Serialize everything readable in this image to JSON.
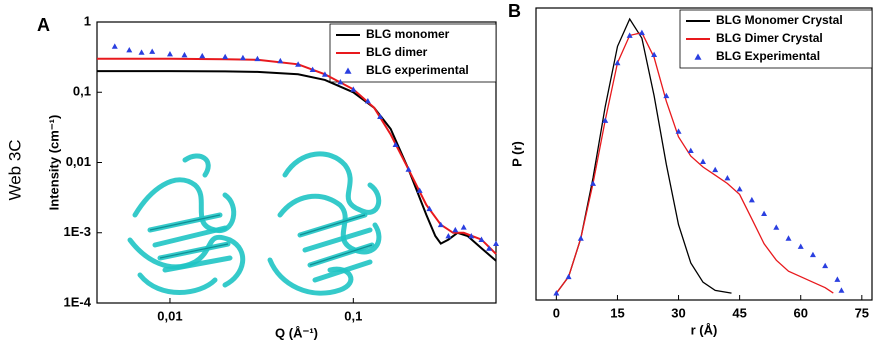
{
  "side_label": "Web 3C",
  "chart_data": [
    {
      "type": "line",
      "panel": "A",
      "xlabel": "Q (Å⁻¹)",
      "ylabel": "Intensity (cm⁻¹)",
      "xlog": true,
      "ylog": true,
      "legend": "top-right",
      "xlim": [
        0.004,
        0.6
      ],
      "ylim": [
        0.0001,
        1
      ],
      "xticks": [
        {
          "value": 0.01,
          "label": "0,01"
        },
        {
          "value": 0.1,
          "label": "0,1"
        }
      ],
      "yticks": [
        {
          "value": 0.0001,
          "label": "1E-4"
        },
        {
          "value": 0.001,
          "label": "1E-3"
        },
        {
          "value": 0.01,
          "label": "0,01"
        },
        {
          "value": 0.1,
          "label": "0,1"
        },
        1
      ],
      "series": [
        {
          "name": "BLG monomer",
          "color": "#000000",
          "mode": "line",
          "x": [
            0.004,
            0.01,
            0.02,
            0.03,
            0.05,
            0.07,
            0.1,
            0.13,
            0.16,
            0.2,
            0.25,
            0.28,
            0.3,
            0.33,
            0.37,
            0.42,
            0.5,
            0.6
          ],
          "values": [
            0.2,
            0.2,
            0.198,
            0.195,
            0.18,
            0.15,
            0.1,
            0.06,
            0.03,
            0.008,
            0.0018,
            0.0009,
            0.0007,
            0.0008,
            0.001,
            0.0009,
            0.0006,
            0.0004
          ]
        },
        {
          "name": "BLG dimer",
          "color": "#e8191d",
          "mode": "line",
          "x": [
            0.004,
            0.01,
            0.02,
            0.03,
            0.05,
            0.07,
            0.1,
            0.13,
            0.16,
            0.2,
            0.25,
            0.3,
            0.35,
            0.4,
            0.5,
            0.6
          ],
          "values": [
            0.3,
            0.3,
            0.295,
            0.29,
            0.25,
            0.18,
            0.11,
            0.06,
            0.025,
            0.008,
            0.0025,
            0.0013,
            0.001,
            0.001,
            0.0008,
            0.0005
          ]
        },
        {
          "name": "BLG experimental",
          "color": "#2a3fe0",
          "mode": "marker",
          "x": [
            0.005,
            0.006,
            0.007,
            0.008,
            0.01,
            0.012,
            0.015,
            0.02,
            0.025,
            0.03,
            0.04,
            0.05,
            0.06,
            0.07,
            0.085,
            0.1,
            0.12,
            0.14,
            0.17,
            0.2,
            0.23,
            0.26,
            0.3,
            0.33,
            0.36,
            0.4,
            0.44,
            0.5,
            0.55,
            0.6
          ],
          "values": [
            0.45,
            0.4,
            0.37,
            0.38,
            0.35,
            0.34,
            0.33,
            0.32,
            0.31,
            0.3,
            0.28,
            0.25,
            0.21,
            0.18,
            0.14,
            0.11,
            0.075,
            0.045,
            0.018,
            0.008,
            0.004,
            0.0022,
            0.0013,
            0.0009,
            0.0011,
            0.0012,
            0.0009,
            0.0008,
            0.0006,
            0.0007
          ]
        }
      ]
    },
    {
      "type": "line",
      "panel": "B",
      "xlabel": "r (Å)",
      "ylabel": "P (r)",
      "xlog": false,
      "ylog": false,
      "legend": "top-right",
      "xlim": [
        -5,
        77.5
      ],
      "ylim": [
        -0.025,
        1.04
      ],
      "xticks": [
        0,
        15,
        30,
        45,
        60,
        75
      ],
      "series": [
        {
          "name": "BLG Monomer Crystal",
          "color": "#000000",
          "mode": "line",
          "x": [
            0,
            3,
            6,
            9,
            12,
            15,
            18,
            21,
            24,
            27,
            30,
            33,
            36,
            39,
            43
          ],
          "values": [
            0,
            0.06,
            0.2,
            0.42,
            0.68,
            0.9,
            1.0,
            0.93,
            0.72,
            0.47,
            0.25,
            0.11,
            0.04,
            0.01,
            0
          ]
        },
        {
          "name": "BLG Dimer Crystal",
          "color": "#e8191d",
          "mode": "line",
          "x": [
            0,
            3,
            6,
            9,
            12,
            15,
            18,
            21,
            24,
            27,
            30,
            33,
            36,
            39,
            42,
            45,
            48,
            51,
            54,
            57,
            60,
            63,
            66,
            68
          ],
          "values": [
            0,
            0.06,
            0.2,
            0.4,
            0.63,
            0.84,
            0.94,
            0.95,
            0.86,
            0.7,
            0.57,
            0.5,
            0.46,
            0.43,
            0.4,
            0.36,
            0.27,
            0.18,
            0.12,
            0.08,
            0.06,
            0.04,
            0.02,
            0
          ]
        },
        {
          "name": "BLG Experimental",
          "color": "#2a3fe0",
          "mode": "marker",
          "x": [
            0,
            3,
            6,
            9,
            12,
            15,
            18,
            21,
            24,
            27,
            30,
            33,
            36,
            39,
            42,
            45,
            48,
            51,
            54,
            57,
            60,
            63,
            66,
            69,
            70
          ],
          "values": [
            0,
            0.06,
            0.2,
            0.4,
            0.63,
            0.84,
            0.94,
            0.95,
            0.87,
            0.72,
            0.59,
            0.52,
            0.48,
            0.45,
            0.42,
            0.38,
            0.34,
            0.29,
            0.24,
            0.2,
            0.17,
            0.14,
            0.1,
            0.05,
            0.01
          ]
        }
      ]
    }
  ]
}
